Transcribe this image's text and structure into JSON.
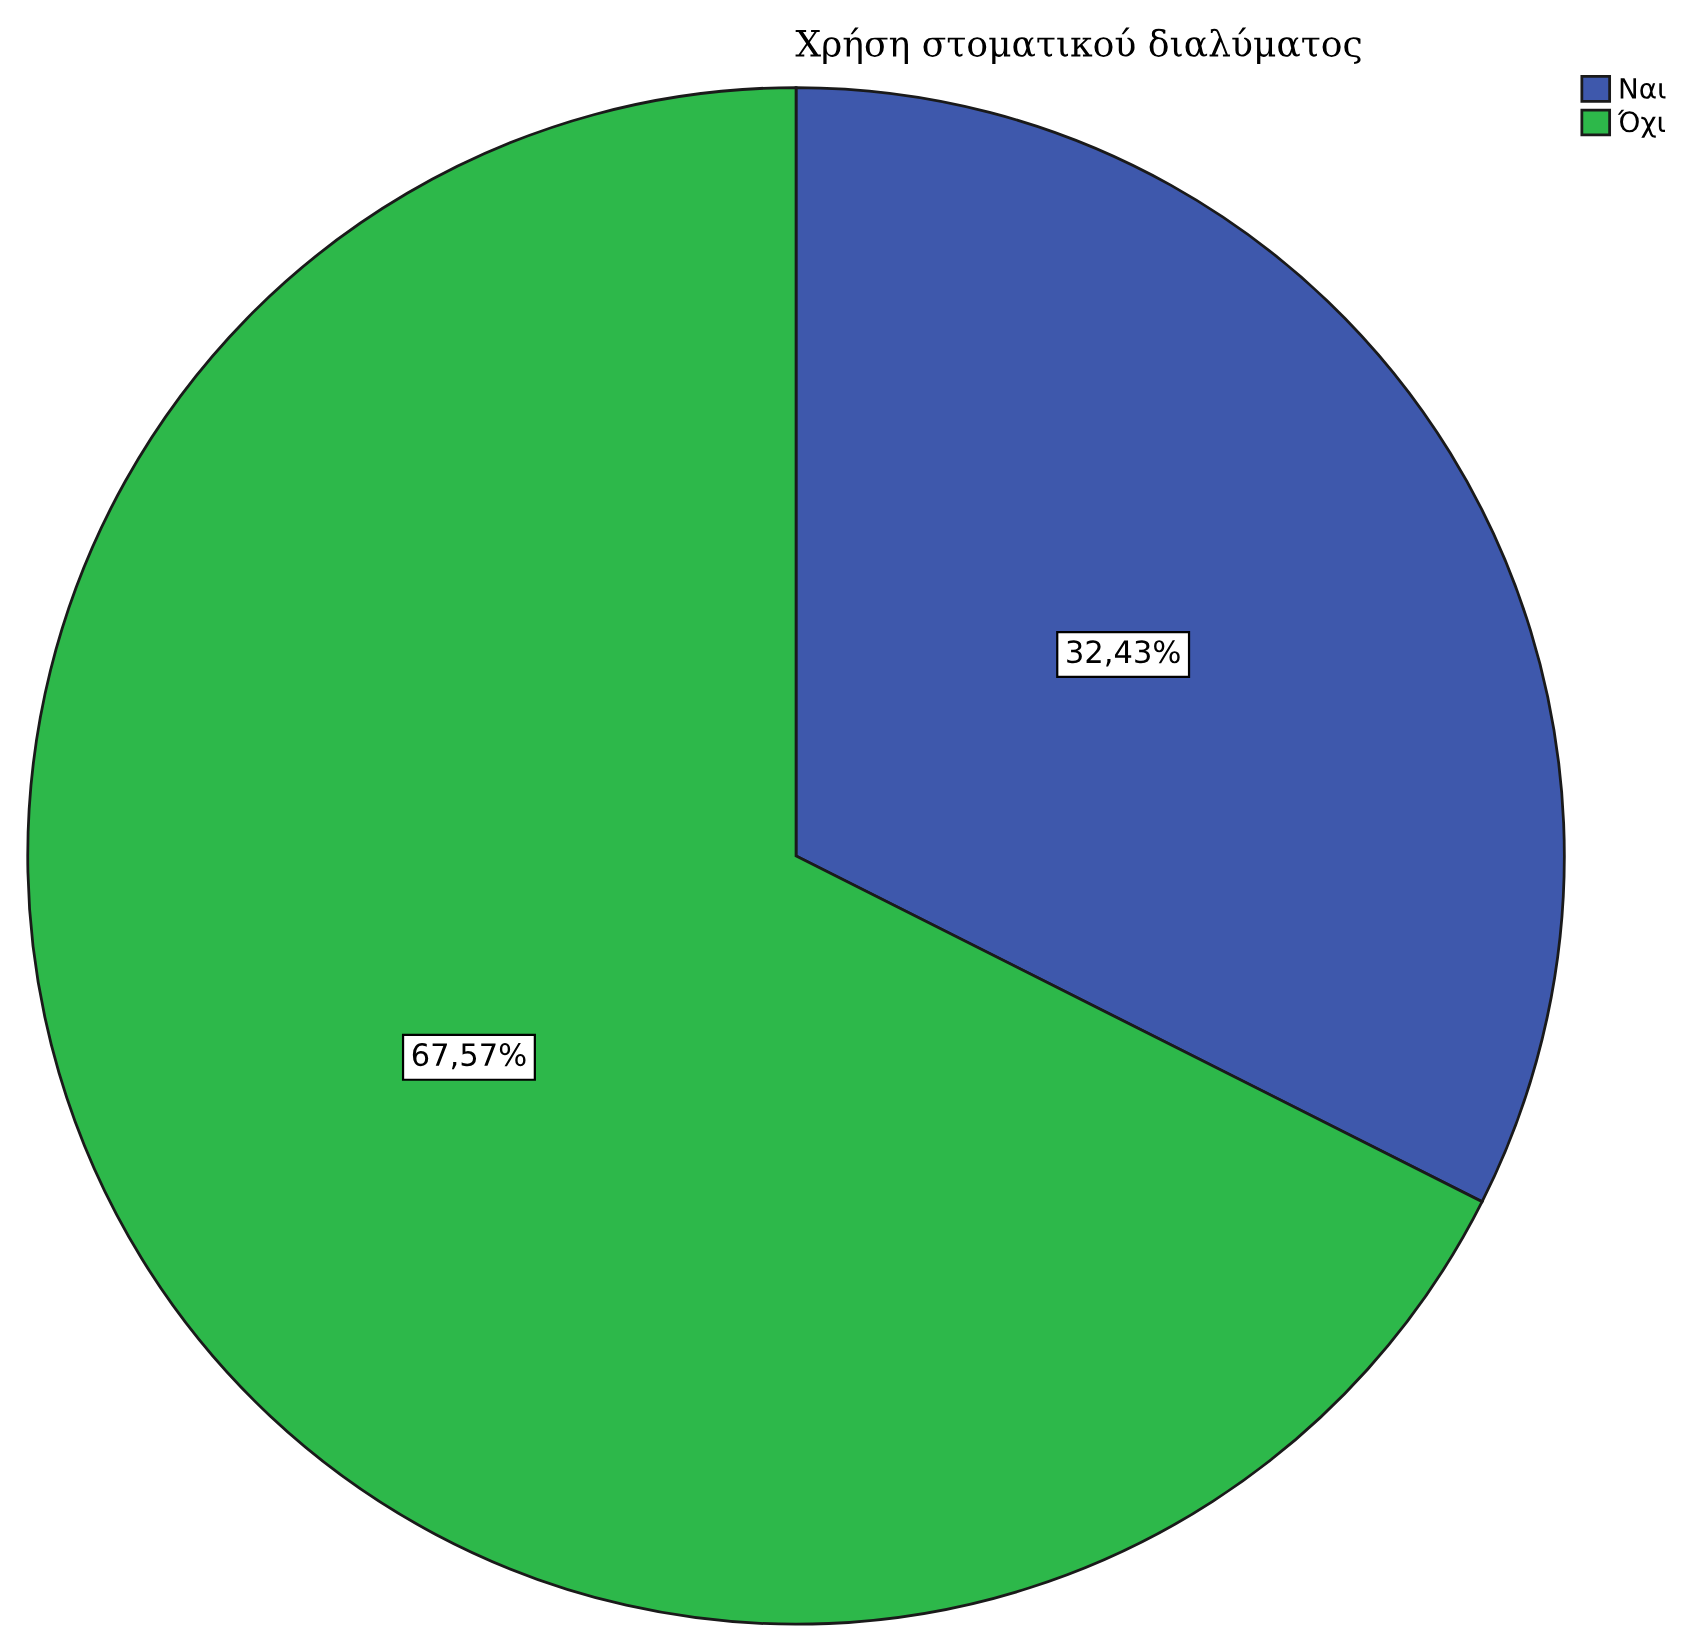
{
  "chart_data": {
    "type": "pie",
    "title": "Χρήση στοματικού διαλύματος",
    "categories": [
      "Ναι",
      "Όχι"
    ],
    "values": [
      32.43,
      67.57
    ],
    "colors": [
      "#3e58ac",
      "#2db84a"
    ],
    "value_labels": [
      "32,43%",
      "67,57%"
    ],
    "legend": "top right"
  }
}
